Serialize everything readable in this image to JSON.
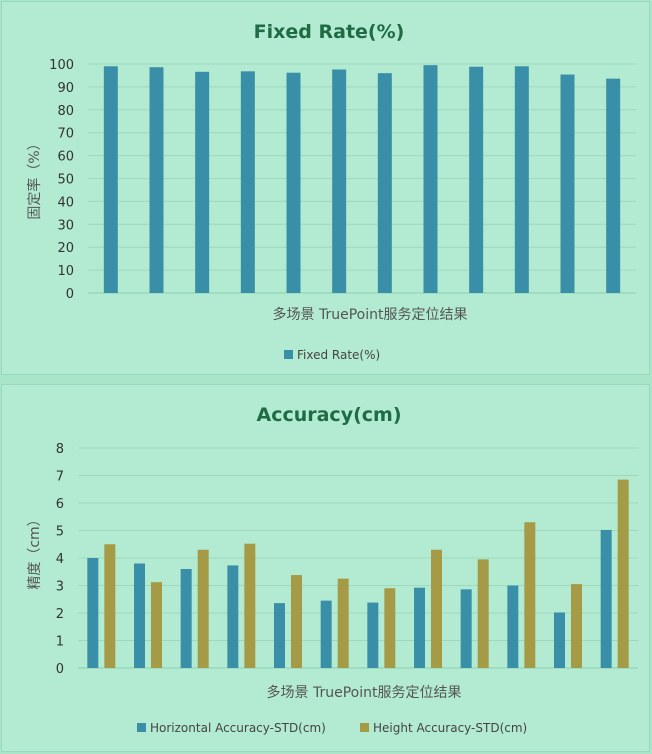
{
  "chart_data": [
    {
      "type": "bar",
      "title": "Fixed Rate(%)",
      "xlabel": "多场景 TruePoint服务定位结果",
      "ylabel": "固定率（%）",
      "ylim": [
        0,
        100
      ],
      "yticks": [
        "0",
        "10",
        "20",
        "30",
        "40",
        "50",
        "60",
        "70",
        "80",
        "90",
        "100"
      ],
      "grid": true,
      "legend_position": "bottom",
      "categories": [
        "",
        "",
        "",
        "",
        "",
        "",
        "",
        "",
        "",
        "",
        "",
        ""
      ],
      "series": [
        {
          "name": "Fixed Rate(%)",
          "color": "#3a8fa8",
          "values": [
            99,
            98.6,
            96.6,
            96.8,
            96.2,
            97.6,
            96.0,
            99.5,
            98.8,
            99.0,
            95.4,
            93.6
          ]
        }
      ]
    },
    {
      "type": "bar",
      "title": "Accuracy(cm)",
      "xlabel": "多场景 TruePoint服务定位结果",
      "ylabel": "精度（cm）",
      "ylim": [
        0,
        8
      ],
      "yticks": [
        "0",
        "1",
        "2",
        "3",
        "4",
        "5",
        "6",
        "7",
        "8"
      ],
      "grid": true,
      "legend_position": "bottom",
      "categories": [
        "",
        "",
        "",
        "",
        "",
        "",
        "",
        "",
        "",
        "",
        "",
        ""
      ],
      "series": [
        {
          "name": "Horizontal Accuracy-STD(cm)",
          "color": "#3a8fa8",
          "values": [
            4.0,
            3.8,
            3.6,
            3.73,
            2.36,
            2.45,
            2.38,
            2.92,
            2.86,
            3.0,
            2.02,
            5.02
          ]
        },
        {
          "name": "Height Accuracy-STD(cm)",
          "color": "#a59a45",
          "values": [
            4.5,
            3.12,
            4.3,
            4.52,
            3.38,
            3.25,
            2.9,
            4.3,
            3.95,
            5.3,
            3.05,
            6.85
          ]
        }
      ]
    }
  ]
}
